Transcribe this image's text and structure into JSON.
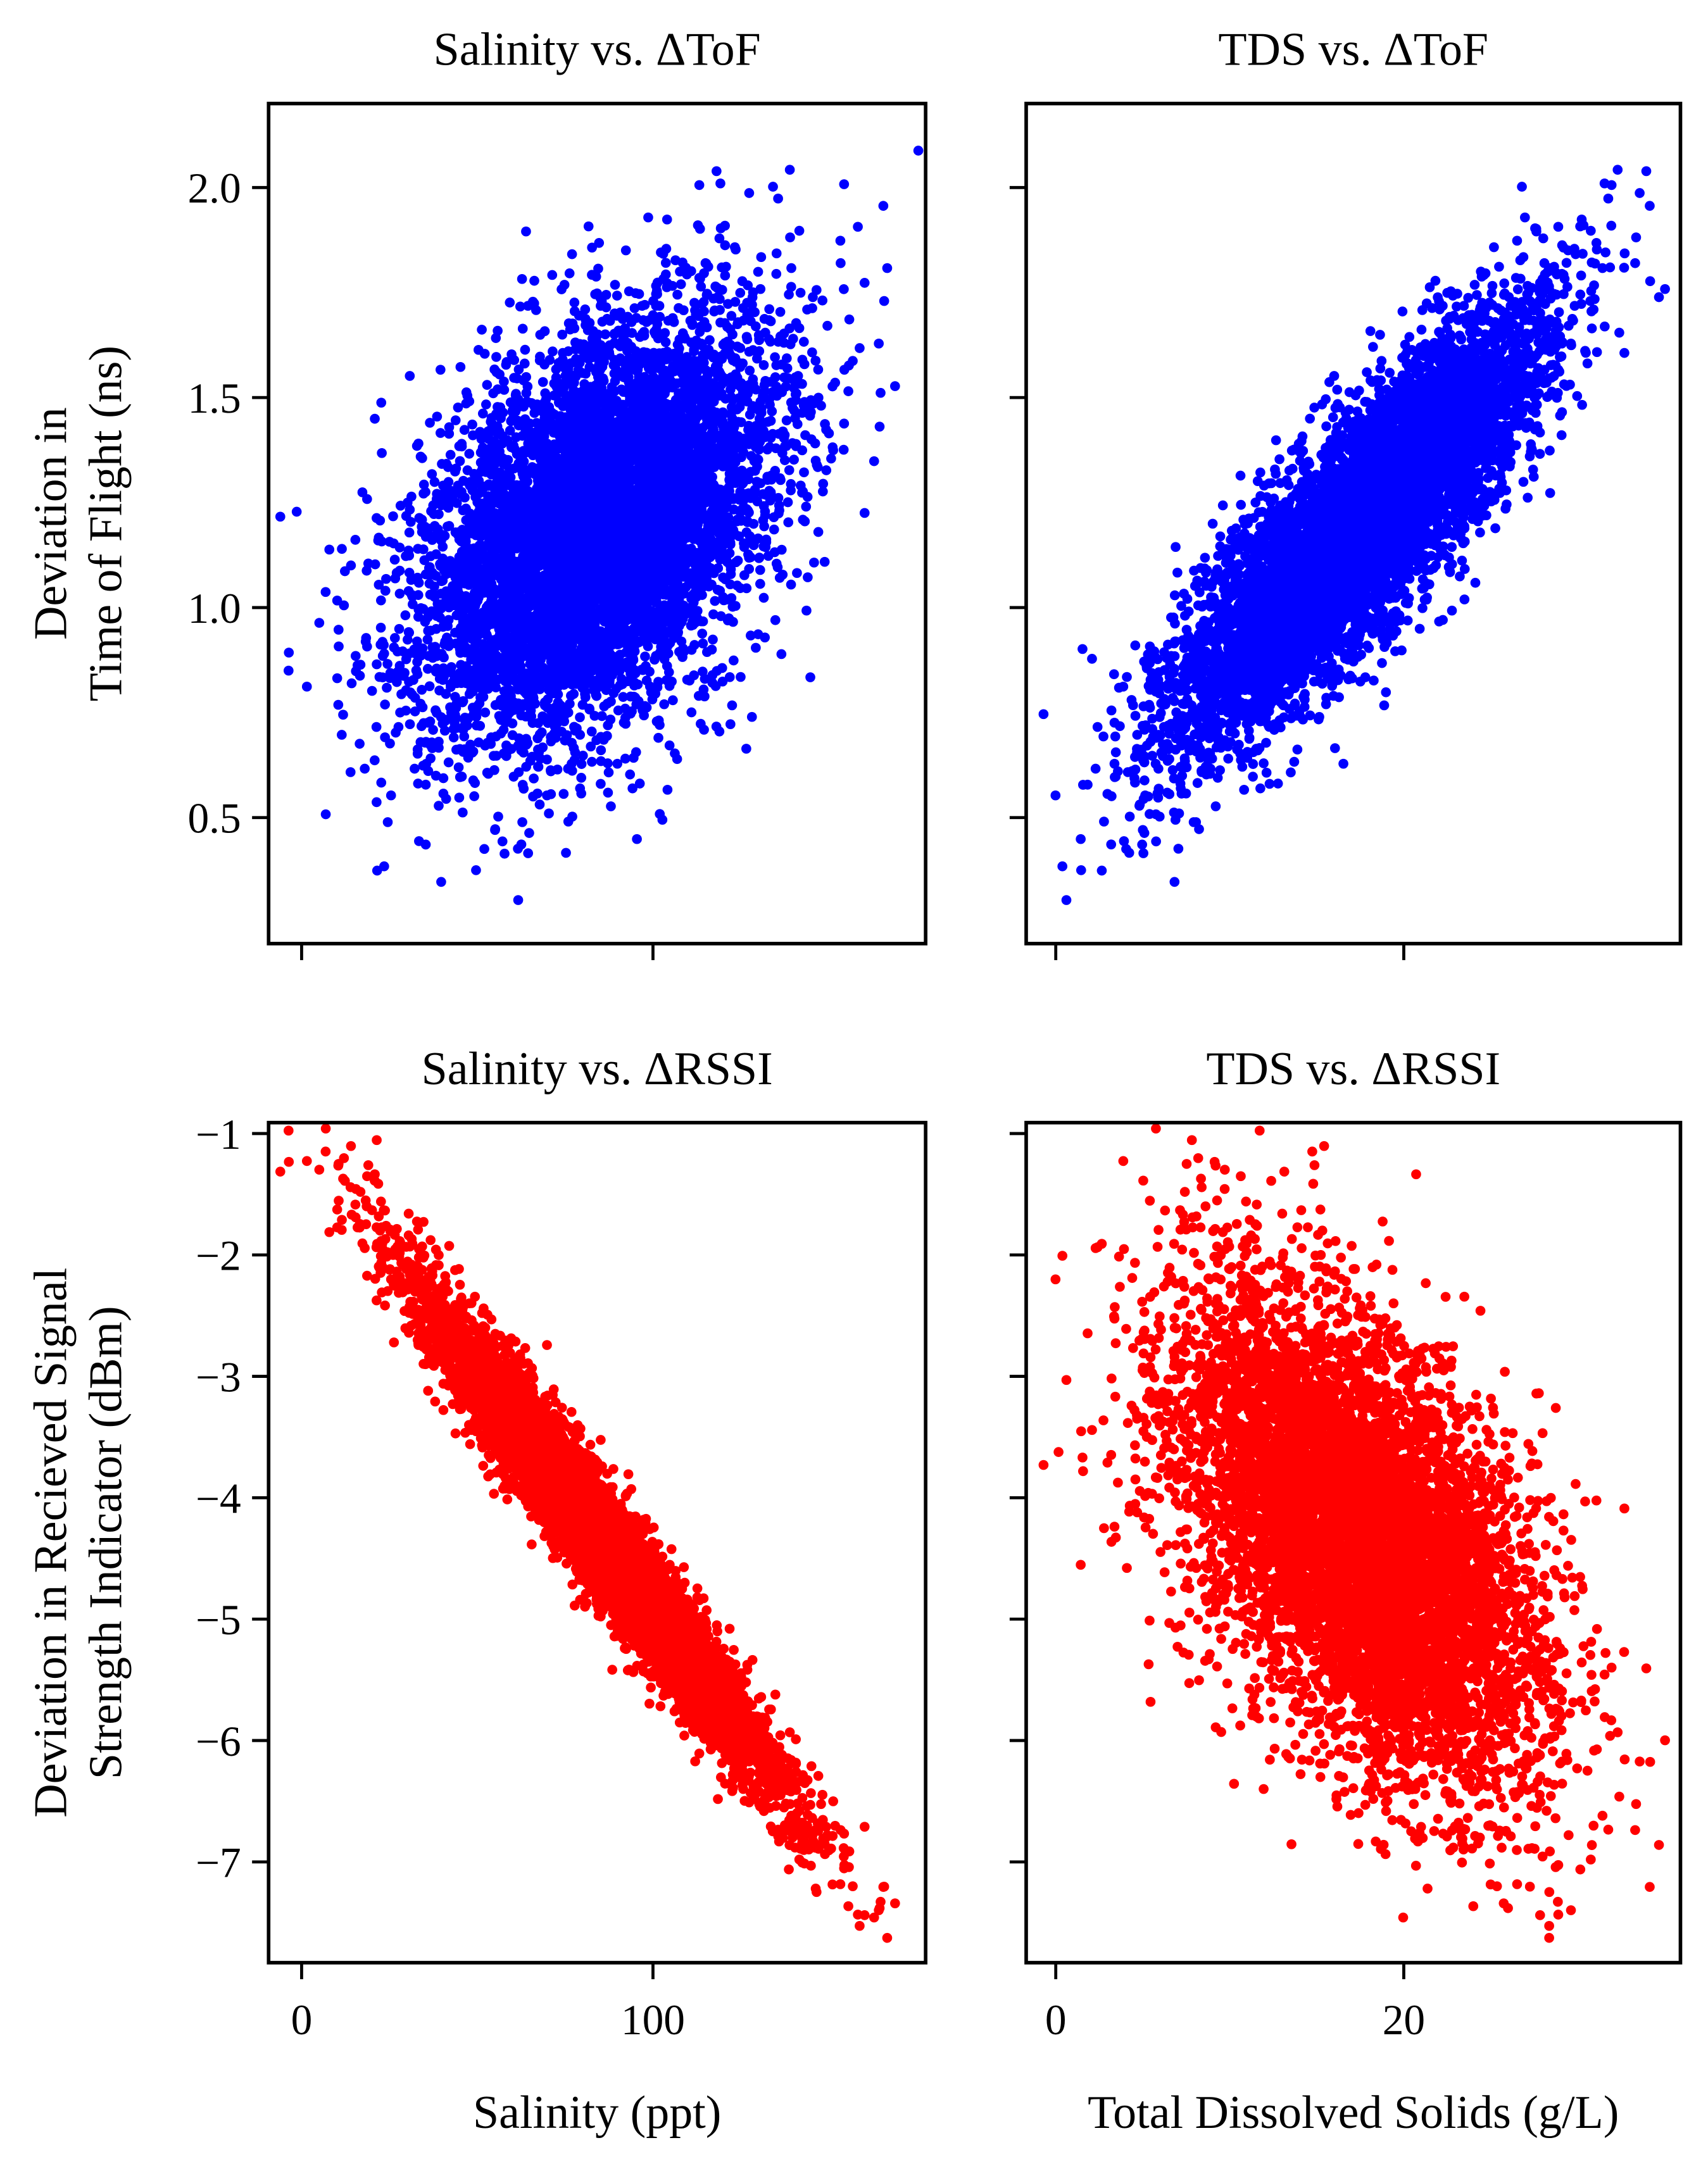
{
  "chart_data": [
    {
      "type": "scatter",
      "title": "Salinity vs. ΔToF",
      "xlabel": "",
      "ylabel": [
        "Deviation in",
        "Time of Flight (ns)"
      ],
      "xlim": [
        -9.4,
        177.6
      ],
      "ylim": [
        0.2,
        2.2
      ],
      "xticks": [
        0,
        100
      ],
      "xtick_labels": [
        "",
        ""
      ],
      "yticks": [
        0.5,
        1.0,
        1.5,
        2.0
      ],
      "ytick_labels": [
        "0.5",
        "1.0",
        "1.5",
        "2.0"
      ],
      "color": "#0000ff",
      "grid": false,
      "x_var": "salinity",
      "y_var": "tof"
    },
    {
      "type": "scatter",
      "title": "TDS vs. ΔToF",
      "xlabel": "",
      "ylabel": [],
      "xlim": [
        -1.7,
        35.9
      ],
      "ylim": [
        0.2,
        2.2
      ],
      "xticks": [
        0,
        20
      ],
      "xtick_labels": [
        "",
        ""
      ],
      "yticks": [
        0.5,
        1.0,
        1.5,
        2.0
      ],
      "ytick_labels": [
        "",
        "",
        "",
        ""
      ],
      "color": "#0000ff",
      "grid": false,
      "x_var": "tds",
      "y_var": "tof"
    },
    {
      "type": "scatter",
      "title": "Salinity vs. ΔRSSI",
      "xlabel": "Salinity (ppt)",
      "ylabel": [
        "Deviation in Recieved Signal",
        "Strength Indicator (dBm)"
      ],
      "xlim": [
        -9.4,
        177.6
      ],
      "ylim": [
        -7.83,
        -0.91
      ],
      "xticks": [
        0,
        100
      ],
      "xtick_labels": [
        "0",
        "100"
      ],
      "yticks": [
        -1,
        -2,
        -3,
        -4,
        -5,
        -6,
        -7
      ],
      "ytick_labels": [
        "−1",
        "−2",
        "−3",
        "−4",
        "−5",
        "−6",
        "−7"
      ],
      "color": "#ff0000",
      "grid": false,
      "x_var": "salinity",
      "y_var": "rssi"
    },
    {
      "type": "scatter",
      "title": "TDS vs. ΔRSSI",
      "xlabel": "Total Dissolved Solids (g/L)",
      "ylabel": [],
      "xlim": [
        -1.7,
        35.9
      ],
      "ylim": [
        -7.83,
        -0.91
      ],
      "xticks": [
        0,
        20
      ],
      "xtick_labels": [
        "0",
        "20"
      ],
      "yticks": [
        -1,
        -2,
        -3,
        -4,
        -5,
        -6,
        -7
      ],
      "ytick_labels": [
        "",
        "",
        "",
        "",
        "",
        "",
        ""
      ],
      "color": "#ff0000",
      "grid": false,
      "x_var": "tds",
      "y_var": "rssi"
    }
  ]
}
